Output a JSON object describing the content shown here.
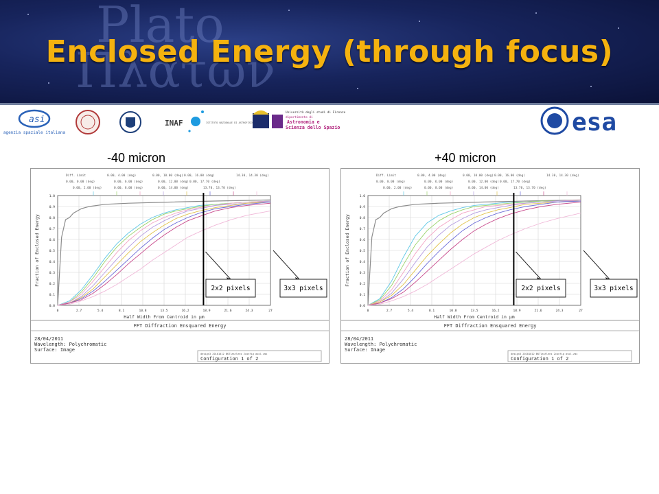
{
  "title": "Enclosed Energy (through focus)",
  "header_bg": {
    "word1": "Plato",
    "word2": "Πλατων"
  },
  "logos": {
    "asi_caption": "agenzia spaziale italiana",
    "inaf": "INAF",
    "inaf_caption": "ISTITUTO NAZIONALE DI ASTROFISICA",
    "firenze_line1": "Università degli studi di Firenze",
    "firenze_line2": "dipartimento di",
    "firenze_line3": "Astronomia e",
    "firenze_line4": "Scienza dello Spazio",
    "esa": "esa"
  },
  "colors": {
    "title": "#f5b20f",
    "header_bg": "#17245c",
    "esa": "#1f4aa3"
  },
  "plots": [
    {
      "label": "-40 micron",
      "marker_x": 18.5,
      "annotations": [
        {
          "text": "2x2 pixels"
        },
        {
          "text": "3x3 pixels"
        }
      ],
      "legend_entries": [
        "Diff. Limit",
        "0.00, 0.00 (deg)",
        "0.00, 2.00 (deg)",
        "0.00, 4.00 (deg)",
        "0.00, 6.00 (deg)",
        "0.00, 8.00 (deg)",
        "0.00, 10.00 (deg)",
        "0.00, 12.00 (deg)",
        "0.00, 14.00 (deg)",
        "0.00, 16.00 (deg)",
        "0.00, 17.70 (deg)",
        "13.70, 13.70 (deg)",
        "14.30, 14.30 (deg)"
      ],
      "footer": {
        "heading": "FFT Diffraction Ensquared Energy",
        "date": "28/04/2011",
        "wavelength": "Wavelength: Polychromatic",
        "surface": "Surface: Image",
        "file": "design3 20101012 BKTlastlens 2config asol.zmx",
        "config": "Configuration 1 of 2"
      }
    },
    {
      "label": "+40 micron",
      "marker_x": 18.5,
      "annotations": [
        {
          "text": "2x2 pixels"
        },
        {
          "text": "3x3 pixels"
        }
      ],
      "legend_entries": [
        "Diff. Limit",
        "0.00, 0.00 (deg)",
        "0.00, 2.00 (deg)",
        "0.00, 4.00 (deg)",
        "0.00, 6.00 (deg)",
        "0.00, 8.00 (deg)",
        "0.00, 10.00 (deg)",
        "0.00, 12.00 (deg)",
        "0.00, 14.00 (deg)",
        "0.00, 16.00 (deg)",
        "0.00, 17.70 (deg)",
        "13.70, 13.70 (deg)",
        "14.30, 14.30 (deg)"
      ],
      "footer": {
        "heading": "FFT Diffraction Ensquared Energy",
        "date": "28/04/2011",
        "wavelength": "Wavelength: Polychromatic",
        "surface": "Surface: Image",
        "file": "design3 20101012 BKTlastlens 2config asol.zmx",
        "config": "Configuration 1 of 2"
      }
    }
  ],
  "chart_data": [
    {
      "type": "line",
      "title": "-40 micron",
      "xlabel": "Half Width From Centroid in µm",
      "ylabel": "Fraction of Enclosed Energy",
      "xlim": [
        0,
        27
      ],
      "ylim": [
        0,
        1.0
      ],
      "xticks": [
        0,
        2.7,
        5.4,
        8.1,
        10.8,
        13.5,
        16.2,
        18.9,
        21.6,
        24.3,
        27
      ],
      "yticks": [
        0.0,
        0.1,
        0.2,
        0.3,
        0.4,
        0.5,
        0.6,
        0.7,
        0.8,
        0.9,
        1.0
      ],
      "grid": true,
      "series": [
        {
          "name": "Diff. Limit",
          "color": "#8c8c8c",
          "x": [
            0,
            0.5,
            1,
            1.5,
            2,
            3,
            4,
            6,
            9,
            14,
            20,
            27
          ],
          "y": [
            0,
            0.62,
            0.78,
            0.8,
            0.84,
            0.88,
            0.9,
            0.92,
            0.93,
            0.94,
            0.95,
            0.96
          ]
        },
        {
          "color": "#5fc8e6",
          "x": [
            0,
            1.5,
            3,
            4.5,
            6,
            7.5,
            9,
            10.5,
            12,
            13.5,
            15,
            16.5,
            18,
            20,
            22,
            24,
            27
          ],
          "y": [
            0,
            0.04,
            0.14,
            0.28,
            0.43,
            0.56,
            0.66,
            0.74,
            0.8,
            0.84,
            0.87,
            0.89,
            0.91,
            0.92,
            0.93,
            0.94,
            0.95
          ]
        },
        {
          "color": "#9ad36a",
          "x": [
            0,
            1.5,
            3,
            4.5,
            6,
            7.5,
            9,
            10.5,
            12,
            13.5,
            15,
            16.5,
            18,
            20,
            22,
            24,
            27
          ],
          "y": [
            0,
            0.03,
            0.12,
            0.25,
            0.4,
            0.53,
            0.63,
            0.71,
            0.78,
            0.83,
            0.86,
            0.88,
            0.9,
            0.92,
            0.93,
            0.94,
            0.95
          ]
        },
        {
          "color": "#f2a3c4",
          "x": [
            0,
            1.5,
            3,
            4.5,
            6,
            7.5,
            9,
            10.5,
            12,
            13.5,
            15,
            16.5,
            18,
            20,
            22,
            24,
            27
          ],
          "y": [
            0,
            0.03,
            0.1,
            0.22,
            0.35,
            0.48,
            0.59,
            0.68,
            0.75,
            0.8,
            0.84,
            0.87,
            0.89,
            0.91,
            0.93,
            0.94,
            0.95
          ]
        },
        {
          "color": "#b49be0",
          "x": [
            0,
            1.5,
            3,
            4.5,
            6,
            7.5,
            9,
            10.5,
            12,
            13.5,
            15,
            16.5,
            18,
            20,
            22,
            24,
            27
          ],
          "y": [
            0,
            0.02,
            0.08,
            0.18,
            0.3,
            0.42,
            0.53,
            0.63,
            0.71,
            0.77,
            0.82,
            0.86,
            0.88,
            0.91,
            0.92,
            0.93,
            0.95
          ]
        },
        {
          "color": "#e0c24a",
          "x": [
            0,
            1.5,
            3,
            4.5,
            6,
            7.5,
            9,
            10.5,
            12,
            13.5,
            15,
            16.5,
            18,
            20,
            22,
            24,
            27
          ],
          "y": [
            0,
            0.02,
            0.07,
            0.15,
            0.26,
            0.37,
            0.48,
            0.58,
            0.66,
            0.73,
            0.79,
            0.83,
            0.86,
            0.89,
            0.91,
            0.93,
            0.94
          ]
        },
        {
          "color": "#6a6ad8",
          "x": [
            0,
            1.5,
            3,
            4.5,
            6,
            7.5,
            9,
            10.5,
            12,
            13.5,
            15,
            16.5,
            18,
            20,
            22,
            24,
            27
          ],
          "y": [
            0,
            0.02,
            0.06,
            0.13,
            0.22,
            0.32,
            0.42,
            0.52,
            0.61,
            0.69,
            0.75,
            0.8,
            0.84,
            0.88,
            0.9,
            0.92,
            0.94
          ]
        },
        {
          "color": "#c84a8c",
          "x": [
            0,
            1.5,
            3,
            4.5,
            6,
            7.5,
            9,
            10.5,
            12,
            13.5,
            15,
            16.5,
            18,
            20,
            22,
            24,
            27
          ],
          "y": [
            0,
            0.02,
            0.05,
            0.11,
            0.19,
            0.28,
            0.38,
            0.47,
            0.56,
            0.64,
            0.71,
            0.77,
            0.81,
            0.86,
            0.89,
            0.91,
            0.93
          ]
        },
        {
          "color": "#f0b8d8",
          "x": [
            0,
            1.5,
            3,
            4.5,
            6,
            7.5,
            9,
            10.5,
            12,
            13.5,
            15,
            16.5,
            18,
            20,
            22,
            24,
            27
          ],
          "y": [
            0,
            0.01,
            0.04,
            0.08,
            0.13,
            0.19,
            0.26,
            0.33,
            0.41,
            0.48,
            0.55,
            0.62,
            0.67,
            0.73,
            0.78,
            0.82,
            0.86
          ]
        }
      ]
    },
    {
      "type": "line",
      "title": "+40 micron",
      "xlabel": "Half Width From Centroid in µm",
      "ylabel": "Fraction of Enclosed Energy",
      "xlim": [
        0,
        27
      ],
      "ylim": [
        0,
        1.0
      ],
      "xticks": [
        0,
        2.7,
        5.4,
        8.1,
        10.8,
        13.5,
        16.2,
        18.9,
        21.6,
        24.3,
        27
      ],
      "yticks": [
        0.0,
        0.1,
        0.2,
        0.3,
        0.4,
        0.5,
        0.6,
        0.7,
        0.8,
        0.9,
        1.0
      ],
      "grid": true,
      "series": [
        {
          "name": "Diff. Limit",
          "color": "#8c8c8c",
          "x": [
            0,
            0.5,
            1,
            1.5,
            2,
            3,
            4,
            6,
            9,
            14,
            20,
            27
          ],
          "y": [
            0,
            0.62,
            0.78,
            0.8,
            0.84,
            0.88,
            0.9,
            0.92,
            0.93,
            0.94,
            0.95,
            0.96
          ]
        },
        {
          "color": "#5fc8e6",
          "x": [
            0,
            1.5,
            3,
            4.5,
            6,
            7.5,
            9,
            10.5,
            12,
            13.5,
            15,
            16.5,
            18,
            20,
            22,
            24,
            27
          ],
          "y": [
            0,
            0.06,
            0.22,
            0.44,
            0.63,
            0.75,
            0.82,
            0.86,
            0.89,
            0.91,
            0.92,
            0.93,
            0.94,
            0.94,
            0.95,
            0.95,
            0.96
          ]
        },
        {
          "color": "#9ad36a",
          "x": [
            0,
            1.5,
            3,
            4.5,
            6,
            7.5,
            9,
            10.5,
            12,
            13.5,
            15,
            16.5,
            18,
            20,
            22,
            24,
            27
          ],
          "y": [
            0,
            0.05,
            0.18,
            0.37,
            0.55,
            0.68,
            0.77,
            0.83,
            0.87,
            0.9,
            0.91,
            0.92,
            0.93,
            0.94,
            0.95,
            0.95,
            0.96
          ]
        },
        {
          "color": "#f2a3c4",
          "x": [
            0,
            1.5,
            3,
            4.5,
            6,
            7.5,
            9,
            10.5,
            12,
            13.5,
            15,
            16.5,
            18,
            20,
            22,
            24,
            27
          ],
          "y": [
            0,
            0.04,
            0.14,
            0.3,
            0.47,
            0.61,
            0.71,
            0.78,
            0.84,
            0.87,
            0.9,
            0.91,
            0.92,
            0.93,
            0.94,
            0.95,
            0.96
          ]
        },
        {
          "color": "#b49be0",
          "x": [
            0,
            1.5,
            3,
            4.5,
            6,
            7.5,
            9,
            10.5,
            12,
            13.5,
            15,
            16.5,
            18,
            20,
            22,
            24,
            27
          ],
          "y": [
            0,
            0.03,
            0.11,
            0.24,
            0.39,
            0.53,
            0.64,
            0.73,
            0.79,
            0.84,
            0.87,
            0.89,
            0.91,
            0.93,
            0.94,
            0.95,
            0.95
          ]
        },
        {
          "color": "#e0c24a",
          "x": [
            0,
            1.5,
            3,
            4.5,
            6,
            7.5,
            9,
            10.5,
            12,
            13.5,
            15,
            16.5,
            18,
            20,
            22,
            24,
            27
          ],
          "y": [
            0,
            0.03,
            0.09,
            0.19,
            0.32,
            0.45,
            0.56,
            0.66,
            0.74,
            0.8,
            0.84,
            0.87,
            0.89,
            0.92,
            0.93,
            0.94,
            0.95
          ]
        },
        {
          "color": "#6a6ad8",
          "x": [
            0,
            1.5,
            3,
            4.5,
            6,
            7.5,
            9,
            10.5,
            12,
            13.5,
            15,
            16.5,
            18,
            20,
            22,
            24,
            27
          ],
          "y": [
            0,
            0.02,
            0.07,
            0.15,
            0.26,
            0.38,
            0.49,
            0.59,
            0.68,
            0.75,
            0.8,
            0.84,
            0.87,
            0.9,
            0.92,
            0.94,
            0.95
          ]
        },
        {
          "color": "#c84a8c",
          "x": [
            0,
            1.5,
            3,
            4.5,
            6,
            7.5,
            9,
            10.5,
            12,
            13.5,
            15,
            16.5,
            18,
            20,
            22,
            24,
            27
          ],
          "y": [
            0,
            0.02,
            0.06,
            0.12,
            0.21,
            0.31,
            0.41,
            0.51,
            0.6,
            0.68,
            0.74,
            0.79,
            0.83,
            0.87,
            0.9,
            0.92,
            0.94
          ]
        },
        {
          "color": "#f0b8d8",
          "x": [
            0,
            1.5,
            3,
            4.5,
            6,
            7.5,
            9,
            10.5,
            12,
            13.5,
            15,
            16.5,
            18,
            20,
            22,
            24,
            27
          ],
          "y": [
            0,
            0.01,
            0.04,
            0.08,
            0.13,
            0.19,
            0.26,
            0.33,
            0.4,
            0.47,
            0.53,
            0.59,
            0.64,
            0.7,
            0.75,
            0.79,
            0.84
          ]
        }
      ]
    }
  ]
}
